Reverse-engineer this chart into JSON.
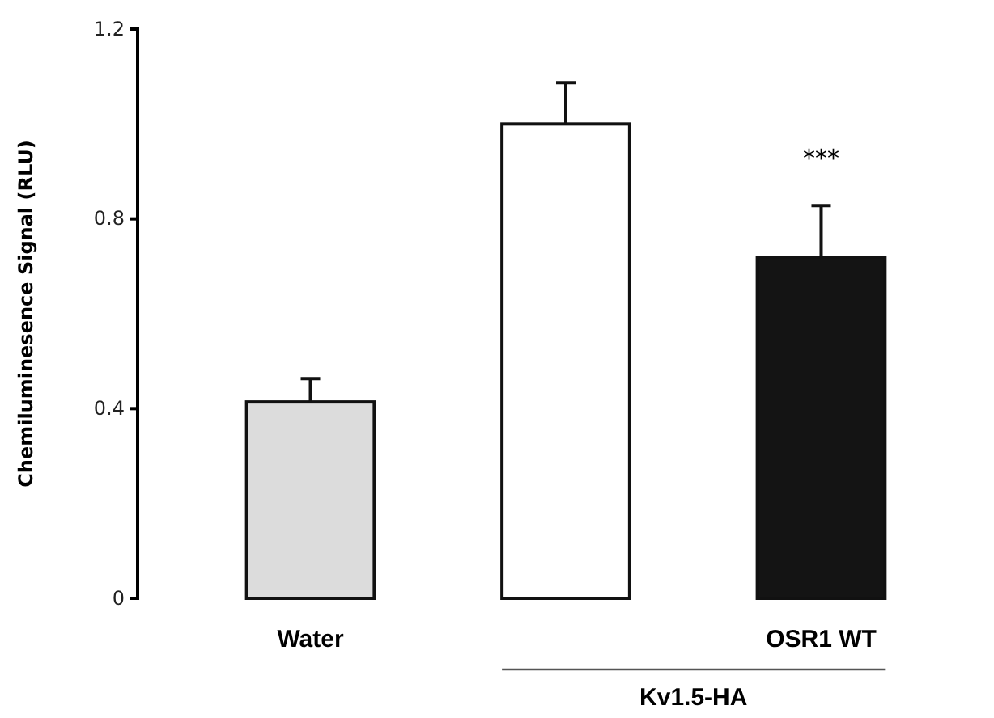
{
  "chart_data": {
    "type": "bar",
    "ylabel": "Chemiluminesence Signal (RLU)",
    "categories": [
      "Water",
      null,
      "OSR1 WT"
    ],
    "values": [
      0.414,
      1.0,
      0.719
    ],
    "colors": [
      "#dcdcdc",
      "#ffffff",
      "#141414"
    ],
    "errors": [
      [
        0.414,
        0.463
      ],
      [
        1.0,
        1.087
      ],
      [
        0.719,
        0.828
      ]
    ],
    "ylim": [
      0,
      1.2
    ],
    "yticks": [
      0,
      0.4,
      0.8,
      1.2
    ],
    "grid": false,
    "annotations": [
      "***",
      "Kv1.5-HA"
    ]
  }
}
